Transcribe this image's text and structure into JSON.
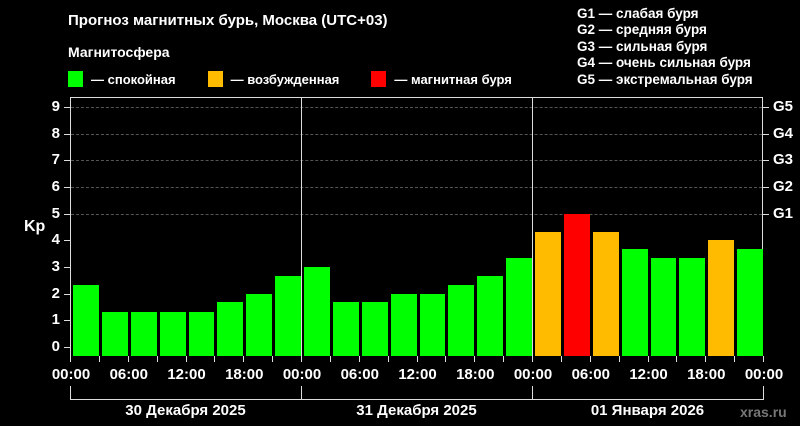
{
  "header": {
    "title": "Прогноз магнитных бурь, Москва (UTC+03)",
    "subtitle": "Магнитосфера"
  },
  "legend": [
    {
      "label": "— спокойная",
      "color": "#00ff00"
    },
    {
      "label": "— возбужденная",
      "color": "#ffbb00"
    },
    {
      "label": "— магнитная буря",
      "color": "#ff0000"
    }
  ],
  "g_legend": [
    "G1 — слабая буря",
    "G2 — средняя буря",
    "G3 — сильная буря",
    "G4 — очень сильная буря",
    "G5 — экстремальная буря"
  ],
  "watermark": "xras.ru",
  "chart_data": {
    "type": "bar",
    "title": "Прогноз магнитных бурь, Москва (UTC+03)",
    "ylabel": "Kp",
    "ylim": [
      0,
      9
    ],
    "yticks": [
      0,
      1,
      2,
      3,
      4,
      5,
      6,
      7,
      8,
      9
    ],
    "right_axis": {
      "ticks": [
        {
          "value": 5,
          "label": "G1"
        },
        {
          "value": 6,
          "label": "G2"
        },
        {
          "value": 7,
          "label": "G3"
        },
        {
          "value": 8,
          "label": "G4"
        },
        {
          "value": 9,
          "label": "G5"
        }
      ]
    },
    "grid": "dashed horizontal at 5-9",
    "xtick_labels": [
      "00:00",
      "06:00",
      "12:00",
      "18:00",
      "00:00",
      "06:00",
      "12:00",
      "18:00",
      "00:00",
      "06:00",
      "12:00",
      "18:00",
      "00:00"
    ],
    "days": [
      "30 Декабря 2025",
      "31 Декабря 2025",
      "01 Января 2026"
    ],
    "interval_hours": 3,
    "categories": [
      "30.12 00:00",
      "30.12 03:00",
      "30.12 06:00",
      "30.12 09:00",
      "30.12 12:00",
      "30.12 15:00",
      "30.12 18:00",
      "30.12 21:00",
      "31.12 00:00",
      "31.12 03:00",
      "31.12 06:00",
      "31.12 09:00",
      "31.12 12:00",
      "31.12 15:00",
      "31.12 18:00",
      "31.12 21:00",
      "01.01 00:00",
      "01.01 03:00",
      "01.01 06:00",
      "01.01 09:00",
      "01.01 12:00",
      "01.01 15:00",
      "01.01 18:00",
      "01.01 21:00"
    ],
    "values": [
      2.33,
      1.33,
      1.33,
      1.33,
      1.33,
      1.67,
      2.0,
      2.67,
      3.0,
      1.67,
      1.67,
      2.0,
      2.0,
      2.33,
      2.67,
      3.33,
      4.33,
      5.0,
      4.33,
      3.67,
      3.33,
      3.33,
      4.0,
      3.67
    ],
    "status": [
      "quiet",
      "quiet",
      "quiet",
      "quiet",
      "quiet",
      "quiet",
      "quiet",
      "quiet",
      "quiet",
      "quiet",
      "quiet",
      "quiet",
      "quiet",
      "quiet",
      "quiet",
      "quiet",
      "active",
      "storm",
      "active",
      "quiet",
      "quiet",
      "quiet",
      "active",
      "quiet"
    ],
    "colors": {
      "quiet": "#00ff00",
      "active": "#ffbb00",
      "storm": "#ff0000"
    },
    "legend": [
      "— спокойная",
      "— возбужденная",
      "— магнитная буря"
    ]
  }
}
